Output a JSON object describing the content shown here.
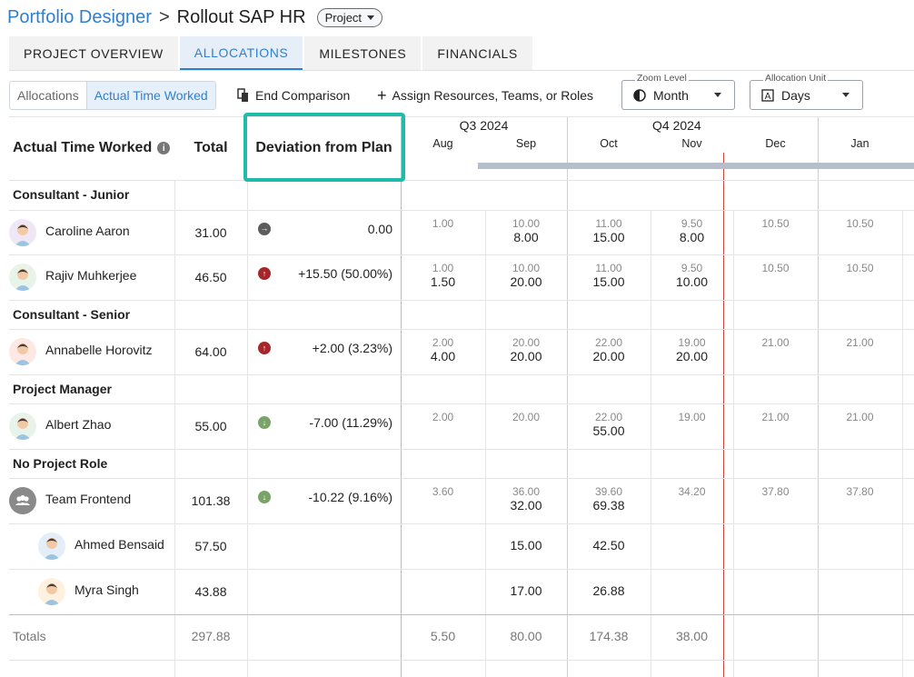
{
  "header": {
    "app_name": "Portfolio Designer",
    "separator": ">",
    "project_title": "Rollout SAP HR",
    "badge": "Project"
  },
  "tabs": [
    "PROJECT OVERVIEW",
    "ALLOCATIONS",
    "MILESTONES",
    "FINANCIALS"
  ],
  "toolbar": {
    "view_toggle": [
      "Allocations",
      "Actual Time Worked"
    ],
    "end_comparison": "End Comparison",
    "assign": "Assign Resources, Teams, or Roles",
    "zoom_legend": "Zoom Level",
    "zoom_value": "Month",
    "unit_legend": "Allocation Unit",
    "unit_value": "Days"
  },
  "grid": {
    "col_resource": "Actual Time Worked",
    "col_total": "Total",
    "col_deviation": "Deviation from Plan",
    "quarters": [
      "Q3 2024",
      "Q4 2024"
    ],
    "months": [
      "Aug",
      "Sep",
      "Oct",
      "Nov",
      "Dec",
      "Jan"
    ],
    "groups": {
      "junior": "Consultant - Junior",
      "senior": "Consultant - Senior",
      "pm": "Project Manager",
      "none": "No Project Role"
    },
    "rows": [
      {
        "name": "Caroline Aaron",
        "total": "31.00",
        "deviation": "0.00",
        "trend": "neutral",
        "plan": [
          "1.00",
          "10.00",
          "11.00",
          "9.50",
          "10.50",
          "10.50"
        ],
        "actual": [
          "",
          "8.00",
          "15.00",
          "8.00",
          "",
          ""
        ]
      },
      {
        "name": "Rajiv Muhkerjee",
        "total": "46.50",
        "deviation": "+15.50 (50.00%)",
        "trend": "up",
        "plan": [
          "1.00",
          "10.00",
          "11.00",
          "9.50",
          "10.50",
          "10.50"
        ],
        "actual": [
          "1.50",
          "20.00",
          "15.00",
          "10.00",
          "",
          ""
        ]
      },
      {
        "name": "Annabelle Horovitz",
        "total": "64.00",
        "deviation": "+2.00 (3.23%)",
        "trend": "up",
        "plan": [
          "2.00",
          "20.00",
          "22.00",
          "19.00",
          "21.00",
          "21.00"
        ],
        "actual": [
          "4.00",
          "20.00",
          "20.00",
          "20.00",
          "",
          ""
        ]
      },
      {
        "name": "Albert Zhao",
        "total": "55.00",
        "deviation": "-7.00 (11.29%)",
        "trend": "down",
        "plan": [
          "2.00",
          "20.00",
          "22.00",
          "19.00",
          "21.00",
          "21.00"
        ],
        "actual": [
          "",
          "",
          "55.00",
          "",
          "",
          ""
        ]
      },
      {
        "name": "Team Frontend",
        "total": "101.38",
        "deviation": "-10.22 (9.16%)",
        "trend": "down",
        "plan": [
          "3.60",
          "36.00",
          "39.60",
          "34.20",
          "37.80",
          "37.80"
        ],
        "actual": [
          "",
          "32.00",
          "69.38",
          "",
          "",
          ""
        ]
      },
      {
        "name": "Ahmed Bensaid",
        "total": "57.50",
        "deviation": "",
        "trend": "",
        "plan": [
          "",
          "",
          "",
          "",
          "",
          ""
        ],
        "actual": [
          "",
          "15.00",
          "42.50",
          "",
          "",
          ""
        ]
      },
      {
        "name": "Myra Singh",
        "total": "43.88",
        "deviation": "",
        "trend": "",
        "plan": [
          "",
          "",
          "",
          "",
          "",
          ""
        ],
        "actual": [
          "",
          "17.00",
          "26.88",
          "",
          "",
          ""
        ]
      }
    ],
    "totals": {
      "label": "Totals",
      "total": "297.88",
      "months": [
        "5.50",
        "80.00",
        "174.38",
        "38.00",
        "",
        ""
      ]
    }
  },
  "colors": {
    "accent": "#2f7fd1",
    "highlight": "#1fbcaa",
    "trend_up": "#a6262a",
    "trend_down": "#7aa36a",
    "trend_neutral": "#5c5c5c",
    "today_line": "#c9473a"
  }
}
